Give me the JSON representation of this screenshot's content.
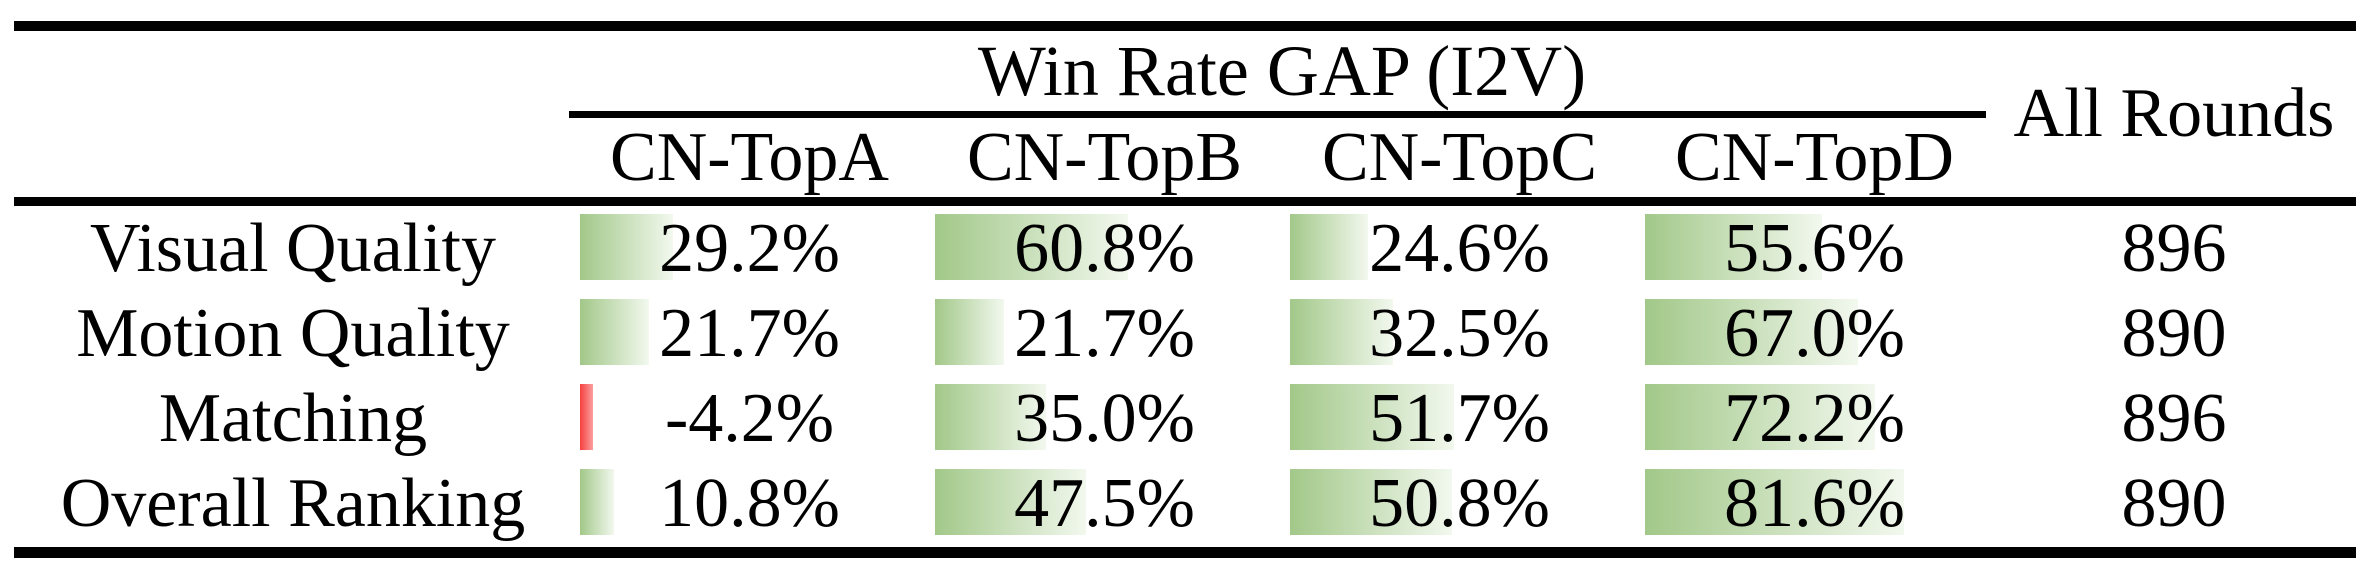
{
  "table": {
    "span_header": "Win Rate GAP (I2V)",
    "all_rounds_header": "All Rounds",
    "columns": [
      "CN-TopA",
      "CN-TopB",
      "CN-TopC",
      "CN-TopD"
    ],
    "rows": [
      {
        "label": "Visual Quality",
        "cells": [
          {
            "display": "29.2%",
            "value": 29.2
          },
          {
            "display": "60.8%",
            "value": 60.8
          },
          {
            "display": "24.6%",
            "value": 24.6
          },
          {
            "display": "55.6%",
            "value": 55.6
          }
        ],
        "all_rounds": "896"
      },
      {
        "label": "Motion Quality",
        "cells": [
          {
            "display": "21.7%",
            "value": 21.7
          },
          {
            "display": "21.7%",
            "value": 21.7
          },
          {
            "display": "32.5%",
            "value": 32.5
          },
          {
            "display": "67.0%",
            "value": 67.0
          }
        ],
        "all_rounds": "890"
      },
      {
        "label": "Matching",
        "cells": [
          {
            "display": "-4.2%",
            "value": -4.2
          },
          {
            "display": "35.0%",
            "value": 35.0
          },
          {
            "display": "51.7%",
            "value": 51.7
          },
          {
            "display": "72.2%",
            "value": 72.2
          }
        ],
        "all_rounds": "896"
      },
      {
        "label": "Overall Ranking",
        "cells": [
          {
            "display": "10.8%",
            "value": 10.8
          },
          {
            "display": "47.5%",
            "value": 47.5
          },
          {
            "display": "50.8%",
            "value": 50.8
          },
          {
            "display": "81.6%",
            "value": 81.6
          }
        ],
        "all_rounds": "890"
      }
    ]
  },
  "colors": {
    "rule_black": "#000000",
    "bar_positive_start": "#a2c889",
    "bar_positive_end": "#f2f8ee",
    "bar_negative_start": "#f5403f",
    "bar_negative_end": "#fb9e9e"
  },
  "chart_data": {
    "type": "table",
    "title": "Win Rate GAP (I2V)",
    "categories": [
      "Visual Quality",
      "Motion Quality",
      "Matching",
      "Overall Ranking"
    ],
    "series": [
      {
        "name": "CN-TopA",
        "values": [
          29.2,
          21.7,
          -4.2,
          10.8
        ]
      },
      {
        "name": "CN-TopB",
        "values": [
          60.8,
          21.7,
          35.0,
          47.5
        ]
      },
      {
        "name": "CN-TopC",
        "values": [
          24.6,
          32.5,
          51.7,
          50.8
        ]
      },
      {
        "name": "CN-TopD",
        "values": [
          55.6,
          67.0,
          72.2,
          81.6
        ]
      }
    ],
    "extra_column": {
      "name": "All Rounds",
      "values": [
        896,
        890,
        896,
        890
      ]
    },
    "unit": "%",
    "bar_style": "in-cell gradient data bars, green positive, red negative"
  }
}
